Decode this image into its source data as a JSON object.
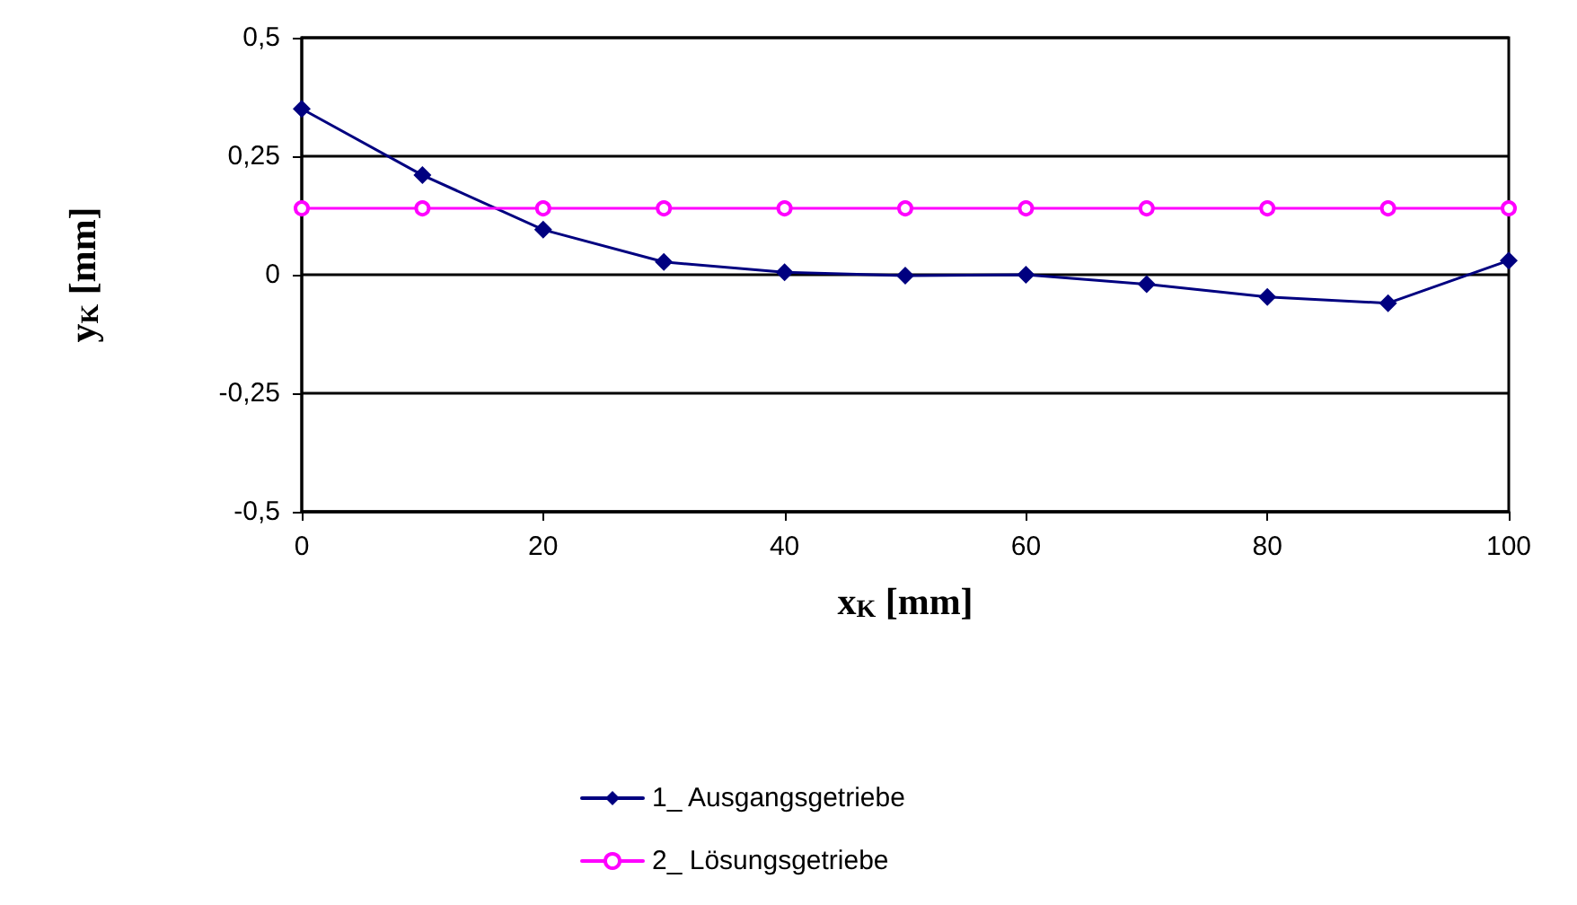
{
  "chart_data": {
    "type": "line",
    "xlabel": "x$_{K}$ [mm]",
    "ylabel": "y$_{K}$ [mm]",
    "x": [
      0,
      10,
      20,
      30,
      40,
      50,
      60,
      70,
      80,
      90,
      100
    ],
    "series": [
      {
        "name": "1_ Ausgangsgetriebe",
        "color": "#000080",
        "marker": "diamond",
        "values": [
          0.35,
          0.21,
          0.095,
          0.027,
          0.005,
          -0.002,
          0,
          -0.02,
          -0.047,
          -0.06,
          0.03
        ]
      },
      {
        "name": "2_ Lösungsgetriebe",
        "color": "#ff00ff",
        "marker": "circle",
        "values": [
          0.14,
          0.14,
          0.14,
          0.14,
          0.14,
          0.14,
          0.14,
          0.14,
          0.14,
          0.14,
          0.14
        ]
      }
    ],
    "xlim": [
      0,
      100
    ],
    "xticks": [
      0,
      20,
      40,
      60,
      80,
      100
    ],
    "ylim": [
      -0.5,
      0.5
    ],
    "yticks": [
      {
        "value": -0.5,
        "label": "-0,5"
      },
      {
        "value": -0.25,
        "label": "-0,25"
      },
      0,
      {
        "value": 0.25,
        "label": "0,25"
      },
      {
        "value": 0.5,
        "label": "0,5"
      }
    ],
    "grid": "y",
    "legend": "bottom",
    "line_style": "solid"
  }
}
